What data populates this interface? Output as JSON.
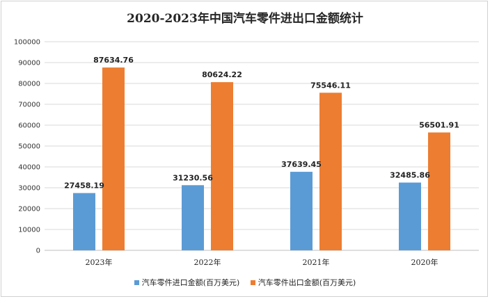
{
  "chart_data": {
    "type": "bar",
    "title": "2020-2023年中国汽车零件进出口金额统计",
    "categories": [
      "2023年",
      "2022年",
      "2021年",
      "2020年"
    ],
    "series": [
      {
        "name": "汽车零件进口金额(百万美元)",
        "color": "#5b9bd5",
        "values": [
          27458.19,
          31230.56,
          37639.45,
          32485.86
        ],
        "labels": [
          "27458.19",
          "31230.56",
          "37639.45",
          "32485.86"
        ]
      },
      {
        "name": "汽车零件出口金额(百万美元)",
        "color": "#ed7d31",
        "values": [
          87634.76,
          80624.22,
          75546.11,
          56501.91
        ],
        "labels": [
          "87634.76",
          "80624.22",
          "75546.11",
          "56501.91"
        ]
      }
    ],
    "ylim": [
      0,
      100000
    ],
    "yticks": [
      "0",
      "10000",
      "20000",
      "30000",
      "40000",
      "50000",
      "60000",
      "70000",
      "80000",
      "90000",
      "100000"
    ],
    "grid": true,
    "legend": "bottom"
  }
}
